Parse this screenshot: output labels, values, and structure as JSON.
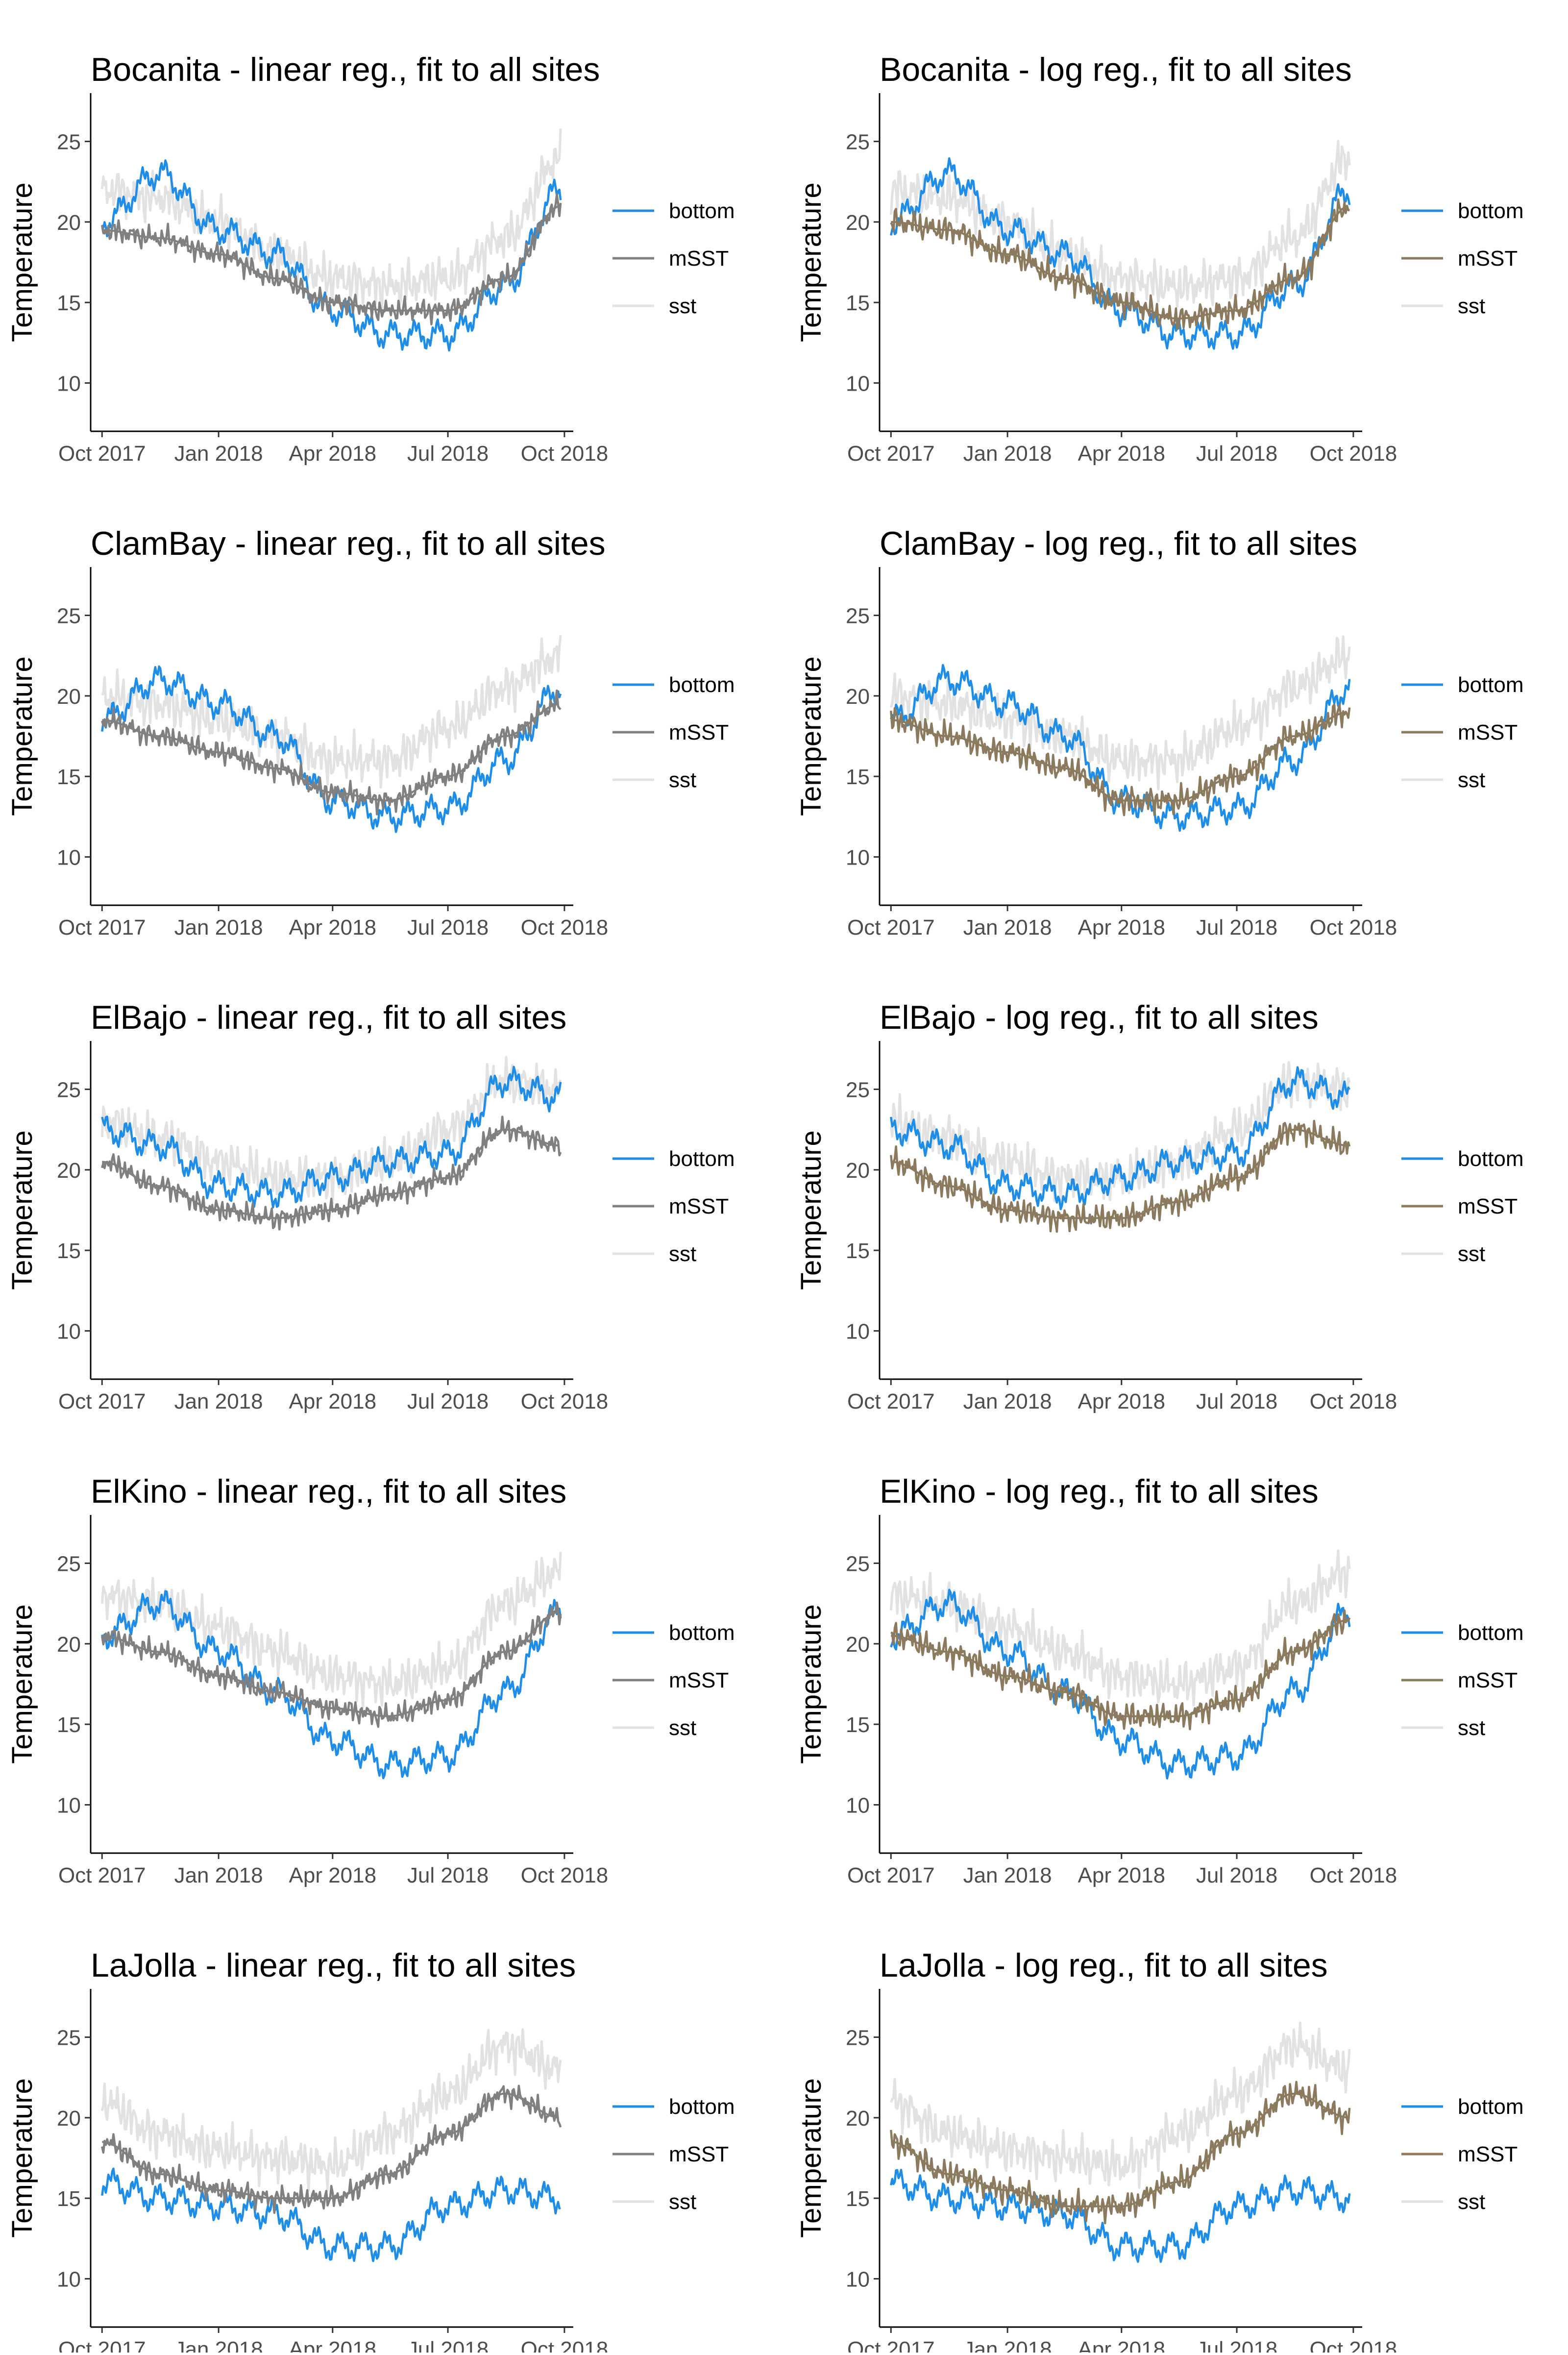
{
  "figure": {
    "ylabel": "Temperature",
    "x_tick_labels": [
      "Oct 2017",
      "Jan 2018",
      "Apr 2018",
      "Jul 2018",
      "Oct 2018"
    ],
    "y_tick_labels": [
      "10",
      "15",
      "20",
      "25"
    ],
    "legend": [
      "bottom",
      "mSST",
      "sst"
    ]
  },
  "colors": {
    "bottom": "#1e8de8",
    "mSST_linear": "#808080",
    "mSST_log": "#8b7a5e",
    "sst": "#e2e2e2"
  },
  "chart_data": [
    {
      "type": "line",
      "title": "Bocanita - linear reg., fit to all sites",
      "xlabel": "",
      "ylabel": "Temperature",
      "x": [
        "2017-10-01",
        "2017-11-15",
        "2018-01-01",
        "2018-02-15",
        "2018-04-01",
        "2018-05-15",
        "2018-07-01",
        "2018-08-15",
        "2018-09-28"
      ],
      "xlim": [
        "2017-09-22",
        "2018-10-08"
      ],
      "ylim": [
        7,
        28
      ],
      "legend_position": "right",
      "series": [
        {
          "name": "bottom",
          "values": [
            20,
            23,
            19.5,
            18,
            14.5,
            13,
            13,
            16,
            22
          ]
        },
        {
          "name": "mSST",
          "values": [
            19.5,
            19,
            18,
            16.5,
            15,
            14.5,
            14.5,
            16.5,
            21
          ]
        },
        {
          "name": "sst",
          "values": [
            22,
            21.5,
            20,
            18,
            16.5,
            16,
            16.5,
            19,
            24
          ]
        }
      ]
    },
    {
      "type": "line",
      "title": "Bocanita - log reg., fit to all sites",
      "xlabel": "",
      "ylabel": "Temperature",
      "x": [
        "2017-10-01",
        "2017-11-15",
        "2018-01-01",
        "2018-02-15",
        "2018-04-01",
        "2018-05-15",
        "2018-07-01",
        "2018-08-15",
        "2018-09-28"
      ],
      "xlim": [
        "2017-09-22",
        "2018-10-08"
      ],
      "ylim": [
        7,
        28
      ],
      "legend_position": "right",
      "series": [
        {
          "name": "bottom",
          "values": [
            20,
            23,
            19.5,
            18,
            14.5,
            13,
            13,
            16,
            22
          ]
        },
        {
          "name": "mSST",
          "values": [
            20,
            19.5,
            18,
            16.5,
            15,
            14,
            14.5,
            16.5,
            21
          ]
        },
        {
          "name": "sst",
          "values": [
            22,
            21.5,
            20,
            18,
            16.5,
            16,
            16.5,
            19,
            24
          ]
        }
      ]
    },
    {
      "type": "line",
      "title": "ClamBay - linear reg., fit to all sites",
      "xlabel": "",
      "ylabel": "Temperature",
      "x": [
        "2017-10-01",
        "2017-11-15",
        "2018-01-01",
        "2018-02-15",
        "2018-04-01",
        "2018-05-15",
        "2018-07-01",
        "2018-08-15",
        "2018-09-28"
      ],
      "xlim": [
        "2017-09-22",
        "2018-10-08"
      ],
      "ylim": [
        7,
        28
      ],
      "legend_position": "right",
      "series": [
        {
          "name": "bottom",
          "values": [
            18.5,
            21,
            19.5,
            17.5,
            13.5,
            12.5,
            13,
            16,
            20.5
          ]
        },
        {
          "name": "mSST",
          "values": [
            18.5,
            17.5,
            16.5,
            15.5,
            14,
            13.5,
            15,
            17.5,
            19.5
          ]
        },
        {
          "name": "sst",
          "values": [
            20,
            19.5,
            18.5,
            17.5,
            16,
            16,
            18,
            20.5,
            22.5
          ]
        }
      ]
    },
    {
      "type": "line",
      "title": "ClamBay - log reg., fit to all sites",
      "xlabel": "",
      "ylabel": "Temperature",
      "x": [
        "2017-10-01",
        "2017-11-15",
        "2018-01-01",
        "2018-02-15",
        "2018-04-01",
        "2018-05-15",
        "2018-07-01",
        "2018-08-15",
        "2018-09-28"
      ],
      "xlim": [
        "2017-09-22",
        "2018-10-08"
      ],
      "ylim": [
        7,
        28
      ],
      "legend_position": "right",
      "series": [
        {
          "name": "bottom",
          "values": [
            18.5,
            21,
            19.5,
            17.5,
            13.5,
            12.5,
            13,
            16,
            20.5
          ]
        },
        {
          "name": "mSST",
          "values": [
            18.5,
            17.5,
            16.5,
            15.5,
            13.5,
            13.5,
            15,
            17.5,
            19
          ]
        },
        {
          "name": "sst",
          "values": [
            20,
            19.5,
            18.5,
            17.5,
            16,
            16,
            18,
            20.5,
            22.5
          ]
        }
      ]
    },
    {
      "type": "line",
      "title": "ElBajo - linear reg., fit to all sites",
      "xlabel": "",
      "ylabel": "Temperature",
      "x": [
        "2017-10-01",
        "2017-11-15",
        "2018-01-01",
        "2018-02-15",
        "2018-04-01",
        "2018-05-15",
        "2018-07-01",
        "2018-08-15",
        "2018-09-28"
      ],
      "xlim": [
        "2017-09-22",
        "2018-10-08"
      ],
      "ylim": [
        7,
        28
      ],
      "legend_position": "right",
      "series": [
        {
          "name": "bottom",
          "values": [
            22.5,
            21.5,
            19,
            18.5,
            19.5,
            20.5,
            21,
            25.5,
            24.5
          ]
        },
        {
          "name": "mSST",
          "values": [
            20.5,
            19,
            17.5,
            17,
            17.5,
            18.5,
            19.5,
            22.5,
            21.5
          ]
        },
        {
          "name": "sst",
          "values": [
            23,
            22,
            20.5,
            19.5,
            19.5,
            20.5,
            22.5,
            25.5,
            25
          ]
        }
      ]
    },
    {
      "type": "line",
      "title": "ElBajo - log reg., fit to all sites",
      "xlabel": "",
      "ylabel": "Temperature",
      "x": [
        "2017-10-01",
        "2017-11-15",
        "2018-01-01",
        "2018-02-15",
        "2018-04-01",
        "2018-05-15",
        "2018-07-01",
        "2018-08-15",
        "2018-09-28"
      ],
      "xlim": [
        "2017-09-22",
        "2018-10-08"
      ],
      "ylim": [
        7,
        28
      ],
      "legend_position": "right",
      "series": [
        {
          "name": "bottom",
          "values": [
            22.5,
            21.5,
            19,
            18.5,
            19.5,
            20.5,
            21,
            25.5,
            24.5
          ]
        },
        {
          "name": "mSST",
          "values": [
            20.5,
            19,
            17.5,
            17,
            17,
            18,
            19.5,
            22.5,
            21.5
          ]
        },
        {
          "name": "sst",
          "values": [
            23,
            22,
            20.5,
            19.5,
            19.5,
            20.5,
            22.5,
            25.5,
            25
          ]
        }
      ]
    },
    {
      "type": "line",
      "title": "ElKino - linear reg., fit to all sites",
      "xlabel": "",
      "ylabel": "Temperature",
      "x": [
        "2017-10-01",
        "2017-11-15",
        "2018-01-01",
        "2018-02-15",
        "2018-04-01",
        "2018-05-15",
        "2018-07-01",
        "2018-08-15",
        "2018-09-28"
      ],
      "xlim": [
        "2017-09-22",
        "2018-10-08"
      ],
      "ylim": [
        7,
        28
      ],
      "legend_position": "right",
      "series": [
        {
          "name": "bottom",
          "values": [
            20.5,
            22.5,
            19.5,
            17,
            14,
            12.5,
            13,
            17,
            22
          ]
        },
        {
          "name": "mSST",
          "values": [
            20.5,
            19.5,
            18,
            17,
            16,
            15.5,
            16.5,
            19.5,
            22
          ]
        },
        {
          "name": "sst",
          "values": [
            23,
            22.5,
            21,
            19.5,
            18,
            17.5,
            18.5,
            22.5,
            24.5
          ]
        }
      ]
    },
    {
      "type": "line",
      "title": "ElKino - log reg., fit to all sites",
      "xlabel": "",
      "ylabel": "Temperature",
      "x": [
        "2017-10-01",
        "2017-11-15",
        "2018-01-01",
        "2018-02-15",
        "2018-04-01",
        "2018-05-15",
        "2018-07-01",
        "2018-08-15",
        "2018-09-28"
      ],
      "xlim": [
        "2017-09-22",
        "2018-10-08"
      ],
      "ylim": [
        7,
        28
      ],
      "legend_position": "right",
      "series": [
        {
          "name": "bottom",
          "values": [
            20.5,
            22.5,
            19.5,
            17,
            14,
            12.5,
            13,
            17,
            22
          ]
        },
        {
          "name": "mSST",
          "values": [
            20.5,
            19.5,
            18,
            17,
            15.5,
            15.5,
            16.5,
            19.5,
            21.5
          ]
        },
        {
          "name": "sst",
          "values": [
            23,
            22.5,
            21,
            19.5,
            18,
            17.5,
            18.5,
            22.5,
            24.5
          ]
        }
      ]
    },
    {
      "type": "line",
      "title": "LaJolla - linear reg., fit to all sites",
      "xlabel": "",
      "ylabel": "Temperature",
      "x": [
        "2017-10-01",
        "2017-11-15",
        "2018-01-01",
        "2018-02-15",
        "2018-04-01",
        "2018-05-15",
        "2018-07-01",
        "2018-08-15",
        "2018-09-28"
      ],
      "xlim": [
        "2017-09-22",
        "2018-10-08"
      ],
      "ylim": [
        7,
        28
      ],
      "legend_position": "right",
      "series": [
        {
          "name": "bottom",
          "values": [
            16,
            15,
            14.5,
            14,
            12,
            12,
            14.5,
            15.5,
            15
          ]
        },
        {
          "name": "mSST",
          "values": [
            18.5,
            16.5,
            15.5,
            15,
            15,
            16.5,
            19,
            21.5,
            20
          ]
        },
        {
          "name": "sst",
          "values": [
            21,
            19,
            18,
            17.5,
            17,
            19,
            21.5,
            24.5,
            23
          ]
        }
      ]
    },
    {
      "type": "line",
      "title": "LaJolla - log reg., fit to all sites",
      "xlabel": "",
      "ylabel": "Temperature",
      "x": [
        "2017-10-01",
        "2017-11-15",
        "2018-01-01",
        "2018-02-15",
        "2018-04-01",
        "2018-05-15",
        "2018-07-01",
        "2018-08-15",
        "2018-09-28"
      ],
      "xlim": [
        "2017-09-22",
        "2018-10-08"
      ],
      "ylim": [
        7,
        28
      ],
      "legend_position": "right",
      "series": [
        {
          "name": "bottom",
          "values": [
            16,
            15,
            14.5,
            14,
            12,
            12,
            14.5,
            15.5,
            15
          ]
        },
        {
          "name": "mSST",
          "values": [
            18.5,
            16.5,
            15.5,
            14.5,
            14.5,
            16,
            19,
            21.5,
            20
          ]
        },
        {
          "name": "sst",
          "values": [
            21,
            19,
            18,
            17.5,
            17,
            19,
            21.5,
            24.5,
            23
          ]
        }
      ]
    }
  ]
}
